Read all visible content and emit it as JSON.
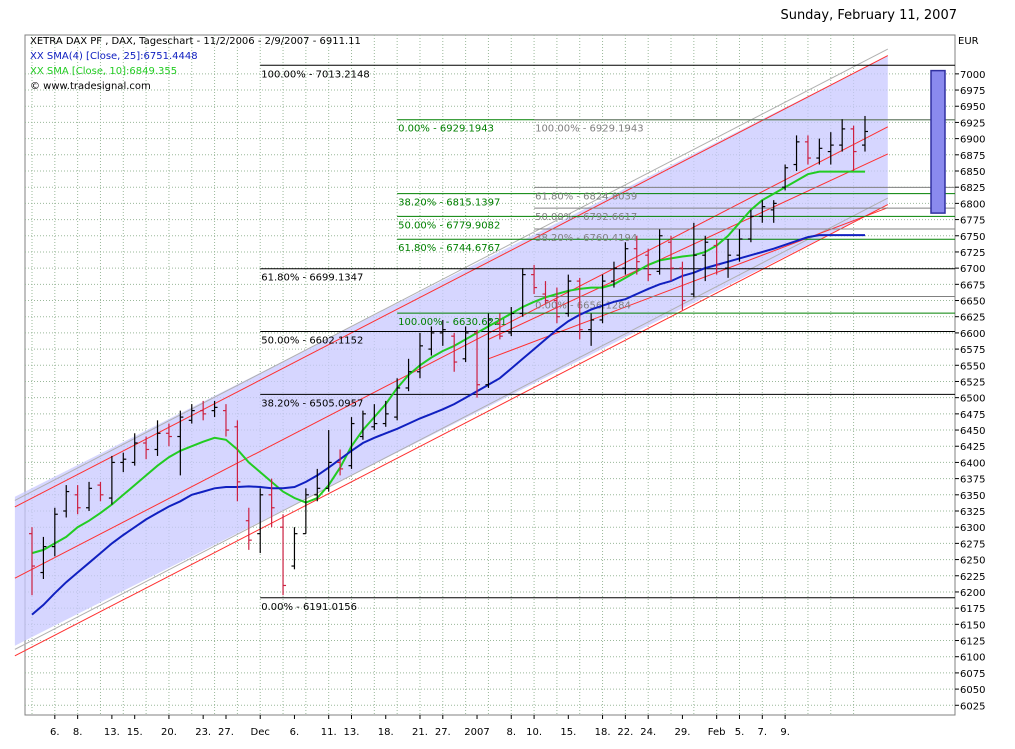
{
  "header": {
    "date": "Sunday, February 11, 2007"
  },
  "legend": {
    "title": "XETRA DAX PF , DAX, Tageschart - 11/2/2006 - 2/9/2007 - 6911.11",
    "sma4": "XX SMA(4) [Close, 25]:6751.4448",
    "sma10": "XX SMA [Close, 10]:6849.355",
    "source": "© www.tradesignal.com"
  },
  "colors": {
    "background": "#ffffff",
    "plot_bg": "#ffffff",
    "grid": "#9ab89a",
    "channel_fill": "#c8c8ff",
    "channel_line": "#ff3030",
    "sma4": "#1020c0",
    "sma10": "#22cc22",
    "bar_up": "#000000",
    "bar_down": "#cc2040",
    "fib_main": "#000000",
    "fib_green": "#008000",
    "fib_gray": "#808080",
    "box_fill": "#8a8aee",
    "box_line": "#3030a0"
  },
  "chart_data": {
    "type": "ohlc",
    "currency": "EUR",
    "ylim": [
      6010,
      7060
    ],
    "y_ticks": [
      6025,
      6050,
      6075,
      6100,
      6125,
      6150,
      6175,
      6200,
      6225,
      6250,
      6275,
      6300,
      6325,
      6350,
      6375,
      6400,
      6425,
      6450,
      6475,
      6500,
      6525,
      6550,
      6575,
      6600,
      6625,
      6650,
      6675,
      6700,
      6725,
      6750,
      6775,
      6800,
      6825,
      6850,
      6875,
      6900,
      6925,
      6950,
      6975,
      7000
    ],
    "x_tick_labels": [
      {
        "label": "6.",
        "i": 2
      },
      {
        "label": "8.",
        "i": 4
      },
      {
        "label": "13.",
        "i": 7
      },
      {
        "label": "15.",
        "i": 9
      },
      {
        "label": "20.",
        "i": 12
      },
      {
        "label": "23.",
        "i": 15
      },
      {
        "label": "27.",
        "i": 17
      },
      {
        "label": "Dec",
        "i": 20
      },
      {
        "label": "6.",
        "i": 23
      },
      {
        "label": "11.",
        "i": 26
      },
      {
        "label": "13.",
        "i": 28
      },
      {
        "label": "18.",
        "i": 31
      },
      {
        "label": "21.",
        "i": 34
      },
      {
        "label": "27.",
        "i": 36
      },
      {
        "label": "2007",
        "i": 39
      },
      {
        "label": "8.",
        "i": 42
      },
      {
        "label": "10.",
        "i": 44
      },
      {
        "label": "15.",
        "i": 47
      },
      {
        "label": "18.",
        "i": 50
      },
      {
        "label": "22.",
        "i": 52
      },
      {
        "label": "24.",
        "i": 54
      },
      {
        "label": "29.",
        "i": 57
      },
      {
        "label": "Feb",
        "i": 60
      },
      {
        "label": "5.",
        "i": 62
      },
      {
        "label": "7.",
        "i": 64
      },
      {
        "label": "9.",
        "i": 66
      }
    ],
    "bars": [
      {
        "o": 6290,
        "h": 6300,
        "l": 6195,
        "c": 6240
      },
      {
        "o": 6230,
        "h": 6285,
        "l": 6220,
        "c": 6270
      },
      {
        "o": 6270,
        "h": 6330,
        "l": 6255,
        "c": 6320
      },
      {
        "o": 6325,
        "h": 6365,
        "l": 6315,
        "c": 6355
      },
      {
        "o": 6350,
        "h": 6365,
        "l": 6320,
        "c": 6330
      },
      {
        "o": 6330,
        "h": 6370,
        "l": 6325,
        "c": 6360
      },
      {
        "o": 6365,
        "h": 6370,
        "l": 6340,
        "c": 6350
      },
      {
        "o": 6345,
        "h": 6410,
        "l": 6335,
        "c": 6400
      },
      {
        "o": 6400,
        "h": 6415,
        "l": 6385,
        "c": 6405
      },
      {
        "o": 6400,
        "h": 6445,
        "l": 6395,
        "c": 6430
      },
      {
        "o": 6430,
        "h": 6440,
        "l": 6405,
        "c": 6420
      },
      {
        "o": 6420,
        "h": 6465,
        "l": 6410,
        "c": 6445
      },
      {
        "o": 6445,
        "h": 6460,
        "l": 6425,
        "c": 6440
      },
      {
        "o": 6440,
        "h": 6480,
        "l": 6380,
        "c": 6470
      },
      {
        "o": 6465,
        "h": 6490,
        "l": 6460,
        "c": 6480
      },
      {
        "o": 6480,
        "h": 6495,
        "l": 6465,
        "c": 6475
      },
      {
        "o": 6480,
        "h": 6495,
        "l": 6470,
        "c": 6485
      },
      {
        "o": 6480,
        "h": 6490,
        "l": 6440,
        "c": 6450
      },
      {
        "o": 6455,
        "h": 6465,
        "l": 6340,
        "c": 6370
      },
      {
        "o": 6310,
        "h": 6330,
        "l": 6265,
        "c": 6280
      },
      {
        "o": 6290,
        "h": 6360,
        "l": 6260,
        "c": 6350
      },
      {
        "o": 6350,
        "h": 6375,
        "l": 6300,
        "c": 6330
      },
      {
        "o": 6300,
        "h": 6320,
        "l": 6195,
        "c": 6210
      },
      {
        "o": 6240,
        "h": 6300,
        "l": 6235,
        "c": 6290
      },
      {
        "o": 6290,
        "h": 6360,
        "l": 6290,
        "c": 6350
      },
      {
        "o": 6350,
        "h": 6390,
        "l": 6340,
        "c": 6360
      },
      {
        "o": 6360,
        "h": 6450,
        "l": 6355,
        "c": 6400
      },
      {
        "o": 6400,
        "h": 6420,
        "l": 6380,
        "c": 6390
      },
      {
        "o": 6395,
        "h": 6470,
        "l": 6390,
        "c": 6460
      },
      {
        "o": 6440,
        "h": 6480,
        "l": 6435,
        "c": 6475
      },
      {
        "o": 6455,
        "h": 6490,
        "l": 6450,
        "c": 6460
      },
      {
        "o": 6460,
        "h": 6495,
        "l": 6455,
        "c": 6475
      },
      {
        "o": 6470,
        "h": 6530,
        "l": 6465,
        "c": 6515
      },
      {
        "o": 6515,
        "h": 6560,
        "l": 6510,
        "c": 6540
      },
      {
        "o": 6540,
        "h": 6600,
        "l": 6530,
        "c": 6580
      },
      {
        "o": 6575,
        "h": 6610,
        "l": 6565,
        "c": 6600
      },
      {
        "o": 6600,
        "h": 6620,
        "l": 6580,
        "c": 6605
      },
      {
        "o": 6595,
        "h": 6600,
        "l": 6540,
        "c": 6555
      },
      {
        "o": 6560,
        "h": 6610,
        "l": 6555,
        "c": 6600
      },
      {
        "o": 6600,
        "h": 6605,
        "l": 6500,
        "c": 6520
      },
      {
        "o": 6520,
        "h": 6630,
        "l": 6515,
        "c": 6620
      },
      {
        "o": 6615,
        "h": 6630,
        "l": 6590,
        "c": 6595
      },
      {
        "o": 6600,
        "h": 6640,
        "l": 6595,
        "c": 6630
      },
      {
        "o": 6630,
        "h": 6700,
        "l": 6625,
        "c": 6690
      },
      {
        "o": 6690,
        "h": 6705,
        "l": 6660,
        "c": 6670
      },
      {
        "o": 6660,
        "h": 6680,
        "l": 6645,
        "c": 6650
      },
      {
        "o": 6650,
        "h": 6670,
        "l": 6615,
        "c": 6625
      },
      {
        "o": 6630,
        "h": 6690,
        "l": 6625,
        "c": 6680
      },
      {
        "o": 6680,
        "h": 6685,
        "l": 6590,
        "c": 6605
      },
      {
        "o": 6605,
        "h": 6630,
        "l": 6580,
        "c": 6620
      },
      {
        "o": 6620,
        "h": 6690,
        "l": 6615,
        "c": 6680
      },
      {
        "o": 6680,
        "h": 6710,
        "l": 6670,
        "c": 6700
      },
      {
        "o": 6700,
        "h": 6740,
        "l": 6690,
        "c": 6730
      },
      {
        "o": 6730,
        "h": 6750,
        "l": 6690,
        "c": 6710
      },
      {
        "o": 6720,
        "h": 6730,
        "l": 6680,
        "c": 6690
      },
      {
        "o": 6695,
        "h": 6760,
        "l": 6690,
        "c": 6750
      },
      {
        "o": 6740,
        "h": 6750,
        "l": 6680,
        "c": 6700
      },
      {
        "o": 6700,
        "h": 6710,
        "l": 6635,
        "c": 6650
      },
      {
        "o": 6660,
        "h": 6770,
        "l": 6655,
        "c": 6720
      },
      {
        "o": 6720,
        "h": 6750,
        "l": 6680,
        "c": 6740
      },
      {
        "o": 6735,
        "h": 6745,
        "l": 6690,
        "c": 6705
      },
      {
        "o": 6700,
        "h": 6745,
        "l": 6685,
        "c": 6720
      },
      {
        "o": 6720,
        "h": 6760,
        "l": 6710,
        "c": 6745
      },
      {
        "o": 6745,
        "h": 6790,
        "l": 6740,
        "c": 6780
      },
      {
        "o": 6780,
        "h": 6805,
        "l": 6770,
        "c": 6795
      },
      {
        "o": 6790,
        "h": 6805,
        "l": 6770,
        "c": 6800
      },
      {
        "o": 6825,
        "h": 6860,
        "l": 6820,
        "c": 6855
      },
      {
        "o": 6860,
        "h": 6905,
        "l": 6850,
        "c": 6895
      },
      {
        "o": 6895,
        "h": 6905,
        "l": 6860,
        "c": 6870
      },
      {
        "o": 6870,
        "h": 6900,
        "l": 6860,
        "c": 6885
      },
      {
        "o": 6880,
        "h": 6910,
        "l": 6860,
        "c": 6890
      },
      {
        "o": 6890,
        "h": 6930,
        "l": 6880,
        "c": 6915
      },
      {
        "o": 6915,
        "h": 6920,
        "l": 6850,
        "c": 6880
      },
      {
        "o": 6890,
        "h": 6935,
        "l": 6880,
        "c": 6911
      }
    ],
    "sma4": [
      6165,
      6180,
      6198,
      6215,
      6230,
      6245,
      6260,
      6275,
      6288,
      6300,
      6312,
      6322,
      6332,
      6340,
      6350,
      6355,
      6360,
      6362,
      6362,
      6363,
      6362,
      6360,
      6360,
      6362,
      6370,
      6380,
      6392,
      6405,
      6418,
      6430,
      6438,
      6445,
      6452,
      6460,
      6468,
      6475,
      6482,
      6490,
      6500,
      6510,
      6520,
      6530,
      6545,
      6560,
      6575,
      6590,
      6605,
      6618,
      6628,
      6636,
      6642,
      6648,
      6652,
      6660,
      6668,
      6675,
      6680,
      6688,
      6693,
      6700,
      6705,
      6710,
      6715,
      6720,
      6725,
      6730,
      6736,
      6742,
      6748,
      6751,
      6751,
      6751,
      6751,
      6751
    ],
    "sma10": [
      6260,
      6265,
      6275,
      6285,
      6300,
      6310,
      6322,
      6335,
      6350,
      6365,
      6380,
      6395,
      6408,
      6418,
      6425,
      6432,
      6438,
      6435,
      6420,
      6400,
      6385,
      6370,
      6355,
      6345,
      6338,
      6345,
      6365,
      6392,
      6425,
      6450,
      6470,
      6490,
      6515,
      6535,
      6550,
      6562,
      6572,
      6580,
      6590,
      6600,
      6610,
      6620,
      6630,
      6640,
      6648,
      6655,
      6660,
      6665,
      6668,
      6670,
      6670,
      6675,
      6685,
      6695,
      6705,
      6712,
      6715,
      6718,
      6720,
      6725,
      6735,
      6750,
      6770,
      6790,
      6805,
      6815,
      6825,
      6835,
      6845,
      6849,
      6849,
      6849,
      6849,
      6849
    ],
    "channel": {
      "upper_outer": [
        [
          0,
          6355
        ],
        [
          73,
          7020
        ]
      ],
      "upper_red": [
        [
          0,
          6345
        ],
        [
          73,
          7010
        ]
      ],
      "lower_outer": [
        [
          0,
          6125
        ],
        [
          73,
          6790
        ]
      ],
      "lower_red": [
        [
          0,
          6115
        ],
        [
          73,
          6780
        ]
      ],
      "mid_line": [
        [
          0,
          6235
        ],
        [
          73,
          6900
        ]
      ],
      "short_up": [
        [
          40,
          6590
        ],
        [
          73,
          6860
        ]
      ],
      "short_dn": [
        [
          40,
          6560
        ],
        [
          73,
          6780
        ]
      ]
    },
    "fib_sets": [
      {
        "color_key": "fib_main",
        "x_start": 20,
        "levels": [
          {
            "label": "100.00% - 7013.2148",
            "value": 7013.2148
          },
          {
            "label": "61.80% - 6699.1347",
            "value": 6699.1347
          },
          {
            "label": "50.00% - 6602.1152",
            "value": 6602.1152
          },
          {
            "label": "38.20% - 6505.0957",
            "value": 6505.0957
          },
          {
            "label": "0.00% - 6191.0156",
            "value": 6191.0156
          }
        ]
      },
      {
        "color_key": "fib_green",
        "x_start": 32,
        "levels": [
          {
            "label": "0.00% - 6929.1943",
            "value": 6929.1943
          },
          {
            "label": "38.20% - 6815.1397",
            "value": 6815.1397
          },
          {
            "label": "50.00% - 6779.9082",
            "value": 6779.9082
          },
          {
            "label": "61.80% - 6744.6767",
            "value": 6744.6767
          },
          {
            "label": "100.00% - 6630.6221",
            "value": 6630.6221
          }
        ]
      },
      {
        "color_key": "fib_gray",
        "x_start": 44,
        "levels": [
          {
            "label": "100.00% - 6929.1943",
            "value": 6929.1943
          },
          {
            "label": "61.80% - 6824.8039",
            "value": 6824.8039
          },
          {
            "label": "50.00% - 6792.6617",
            "value": 6792.6617
          },
          {
            "label": "38.20% - 6760.4194",
            "value": 6760.4194
          },
          {
            "label": "0.00% - 6656.1284",
            "value": 6656.1284
          }
        ]
      }
    ],
    "box": {
      "x0": 71.6,
      "x1": 72.5,
      "top": 7005,
      "bottom": 6785
    }
  }
}
